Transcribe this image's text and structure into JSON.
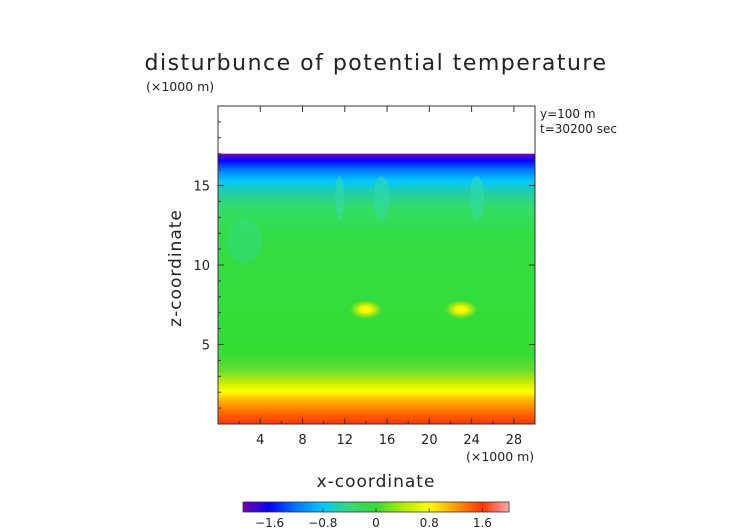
{
  "chart_data": {
    "type": "heatmap",
    "title": "disturbunce of potential temperature",
    "xlabel": "x-coordinate",
    "ylabel": "z-coordinate",
    "x_unit": "(×1000 m)",
    "y_unit": "(×1000 m)",
    "annotations": [
      "y=100 m",
      "t=30200 sec"
    ],
    "xlim": [
      0,
      30
    ],
    "ylim": [
      0,
      20
    ],
    "x_ticks": [
      4,
      8,
      12,
      16,
      20,
      24,
      28
    ],
    "y_ticks": [
      5,
      10,
      15
    ],
    "data_top": 17,
    "colorbar": {
      "min": -2.0,
      "max": 2.0,
      "ticks": [
        -1.6,
        -0.8,
        0,
        0.8,
        1.6
      ],
      "tick_labels": [
        "−1.6",
        "−0.8",
        "0",
        "0.8",
        "1.6"
      ],
      "colors": [
        "#7a00b4",
        "#0000ff",
        "#0078ff",
        "#00c8ff",
        "#33d977",
        "#33dd33",
        "#aaee00",
        "#ffff00",
        "#ff9900",
        "#ff3300",
        "#ffaaaa"
      ]
    },
    "field_description_values": {
      "upper_cold_layer_z": [
        15,
        17
      ],
      "warm_blobs": [
        {
          "x": 14,
          "z": 7.2,
          "value": 0.7
        },
        {
          "x": 23,
          "z": 7.2,
          "value": 0.7
        }
      ],
      "surface_warm_layer_z": [
        0,
        3
      ]
    }
  }
}
